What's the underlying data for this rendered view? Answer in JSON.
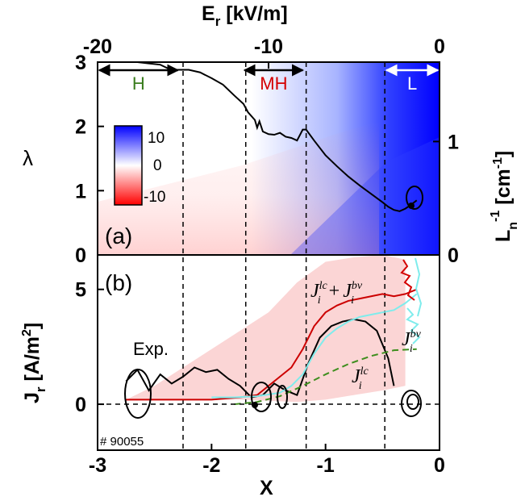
{
  "chart_data": [
    {
      "panel": "(a)",
      "type": "heatmap",
      "top_axis": {
        "label_main": "E",
        "label_sub": "r",
        "label_unit": " [kV/m]",
        "range": [
          -20,
          0
        ],
        "ticks": [
          {
            "v": -20,
            "label": "-20"
          },
          {
            "v": -10,
            "label": "-10"
          },
          {
            "v": 0,
            "label": "0"
          }
        ]
      },
      "left_axis": {
        "label": "λ",
        "range": [
          0,
          3
        ],
        "ticks": [
          {
            "v": 0,
            "label": "0"
          },
          {
            "v": 1,
            "label": "1"
          },
          {
            "v": 2,
            "label": "2"
          },
          {
            "v": 3,
            "label": "3"
          }
        ]
      },
      "right_axis": {
        "label_main": "L",
        "label_sub": "n",
        "label_sup": "-1",
        "label_unit": " [cm",
        "label_unit_sup": "-1",
        "label_end": "]",
        "range": [
          0,
          1.7
        ],
        "ticks": [
          {
            "v": 0,
            "label": "0"
          },
          {
            "v": 1,
            "label": "1"
          }
        ]
      },
      "colorbar": {
        "ticks": [
          {
            "v": 10,
            "label": "10"
          },
          {
            "v": 0,
            "label": "0"
          },
          {
            "v": -10,
            "label": "-10"
          }
        ],
        "colors": {
          "high": "#0000ff",
          "mid": "#ffffff",
          "low": "#ff0000"
        }
      },
      "regions": [
        {
          "label": "H",
          "from_Er": -20,
          "to_Er": -15.2,
          "color": "#3a7d1e"
        },
        {
          "label": "MH",
          "from_Er": -11.5,
          "to_Er": -7.9,
          "color": "#d40000"
        },
        {
          "label": "L",
          "from_Er": -3.2,
          "to_Er": 0,
          "color": "#ffffff"
        }
      ],
      "trajectory": {
        "x": [
          -2.65,
          -2.55,
          -2.45,
          -2.38,
          -2.3,
          -2.2,
          -2.1,
          -2.0,
          -1.9,
          -1.8,
          -1.72,
          -1.68,
          -1.62,
          -1.6,
          -1.58,
          -1.55,
          -1.5,
          -1.45,
          -1.4,
          -1.35,
          -1.3,
          -1.25,
          -1.2,
          -1.17,
          -1.1,
          -1.0,
          -0.9,
          -0.8,
          -0.7,
          -0.6,
          -0.5,
          -0.45,
          -0.4,
          -0.35,
          -0.3,
          -0.25,
          -0.2
        ],
        "y": [
          3.0,
          2.98,
          2.96,
          2.9,
          2.88,
          2.88,
          2.84,
          2.75,
          2.65,
          2.48,
          2.35,
          2.22,
          2.1,
          1.98,
          2.08,
          1.92,
          1.88,
          1.87,
          1.9,
          1.84,
          1.82,
          1.78,
          1.95,
          1.95,
          1.78,
          1.55,
          1.38,
          1.22,
          1.08,
          0.95,
          0.82,
          0.75,
          0.7,
          0.68,
          0.72,
          0.78,
          0.85
        ]
      }
    },
    {
      "panel": "(b)",
      "type": "line",
      "x_axis": {
        "label": "X",
        "range": [
          -3,
          0
        ],
        "ticks": [
          {
            "v": -3,
            "label": "-3"
          },
          {
            "v": -2,
            "label": "-2"
          },
          {
            "v": -1,
            "label": "-1"
          },
          {
            "v": 0,
            "label": "0"
          }
        ]
      },
      "y_axis": {
        "label_main": "J",
        "label_sub": "r",
        "label_unit": " [A/m",
        "label_unit_sup": "2",
        "label_end": "]",
        "range": [
          -2,
          6.5
        ],
        "ticks": [
          {
            "v": 0,
            "label": "0"
          },
          {
            "v": 5,
            "label": "5"
          }
        ]
      },
      "vlines_x": [
        -2.25,
        -1.7,
        -1.17,
        -0.48
      ],
      "band": {
        "x": [
          -2.75,
          -2.5,
          -2.25,
          -2.0,
          -1.75,
          -1.5,
          -1.25,
          -1.0,
          -0.75,
          -0.5,
          -0.3
        ],
        "upper": [
          0.2,
          0.8,
          1.6,
          2.4,
          3.2,
          4.0,
          5.3,
          6.2,
          6.4,
          6.5,
          6.3
        ],
        "lower": [
          0.15,
          0.2,
          0.2,
          0.2,
          0.2,
          0.15,
          0.1,
          0.2,
          0.4,
          0.6,
          0.8
        ],
        "color": "#fbd5d5"
      },
      "series": [
        {
          "name": "Exp.",
          "color": "#000000",
          "dash": "",
          "x": [
            -2.75,
            -2.65,
            -2.55,
            -2.45,
            -2.35,
            -2.25,
            -2.15,
            -2.05,
            -1.95,
            -1.85,
            -1.75,
            -1.65,
            -1.55,
            -1.45,
            -1.35,
            -1.25,
            -1.15,
            -1.05,
            -0.95,
            -0.85,
            -0.75,
            -0.65,
            -0.55,
            -0.45,
            -0.4
          ],
          "y": [
            1.0,
            1.5,
            0.6,
            1.3,
            0.9,
            1.2,
            1.6,
            1.4,
            1.5,
            1.1,
            0.8,
            0.3,
            0.4,
            0.9,
            0.6,
            0.4,
            1.8,
            2.9,
            3.4,
            3.6,
            3.7,
            3.6,
            3.2,
            2.0,
            0.8
          ]
        },
        {
          "name": "J_i^lc + J_i^bv",
          "color": "#cc0000",
          "dash": "",
          "x": [
            -2.75,
            -2.5,
            -2.25,
            -2.0,
            -1.75,
            -1.6,
            -1.5,
            -1.4,
            -1.3,
            -1.2,
            -1.1,
            -1.0,
            -0.9,
            -0.8,
            -0.7,
            -0.6,
            -0.5,
            -0.4,
            -0.3,
            -0.2
          ],
          "y": [
            0.2,
            0.2,
            0.2,
            0.2,
            0.3,
            0.4,
            0.8,
            1.2,
            1.6,
            2.4,
            3.4,
            4.0,
            4.3,
            4.5,
            4.6,
            4.7,
            4.8,
            4.7,
            4.8,
            5.0
          ]
        },
        {
          "name": "J_i^bv",
          "color": "#7fecec",
          "dash": "",
          "x": [
            -2.0,
            -1.8,
            -1.6,
            -1.4,
            -1.3,
            -1.2,
            -1.1,
            -1.0,
            -0.9,
            -0.8,
            -0.7,
            -0.6,
            -0.5,
            -0.4,
            -0.3,
            -0.2
          ],
          "y": [
            0.3,
            0.3,
            0.35,
            0.5,
            0.8,
            1.3,
            2.2,
            2.9,
            3.3,
            3.6,
            3.8,
            3.9,
            4.0,
            4.1,
            4.4,
            4.8
          ]
        },
        {
          "name": "J_i^lc",
          "color": "#3e8e1e",
          "dash": "8,5",
          "x": [
            -1.8,
            -1.6,
            -1.4,
            -1.2,
            -1.0,
            -0.8,
            -0.6,
            -0.4,
            -0.2
          ],
          "y": [
            0.0,
            0.1,
            0.35,
            0.8,
            1.3,
            1.75,
            2.1,
            2.35,
            2.4
          ]
        }
      ],
      "labels": {
        "exp": "Exp.",
        "sum_a": "J",
        "sum_a_sup": "lc",
        "sum_a_sub": "i",
        "plus": "+",
        "sum_b": "J",
        "sum_b_sup": "bv",
        "sum_b_sub": "i",
        "bv": "J",
        "bv_sup": "bv",
        "bv_sub": "i",
        "lc": "J",
        "lc_sup": "lc",
        "lc_sub": "i"
      },
      "shot": "# 90055"
    }
  ]
}
